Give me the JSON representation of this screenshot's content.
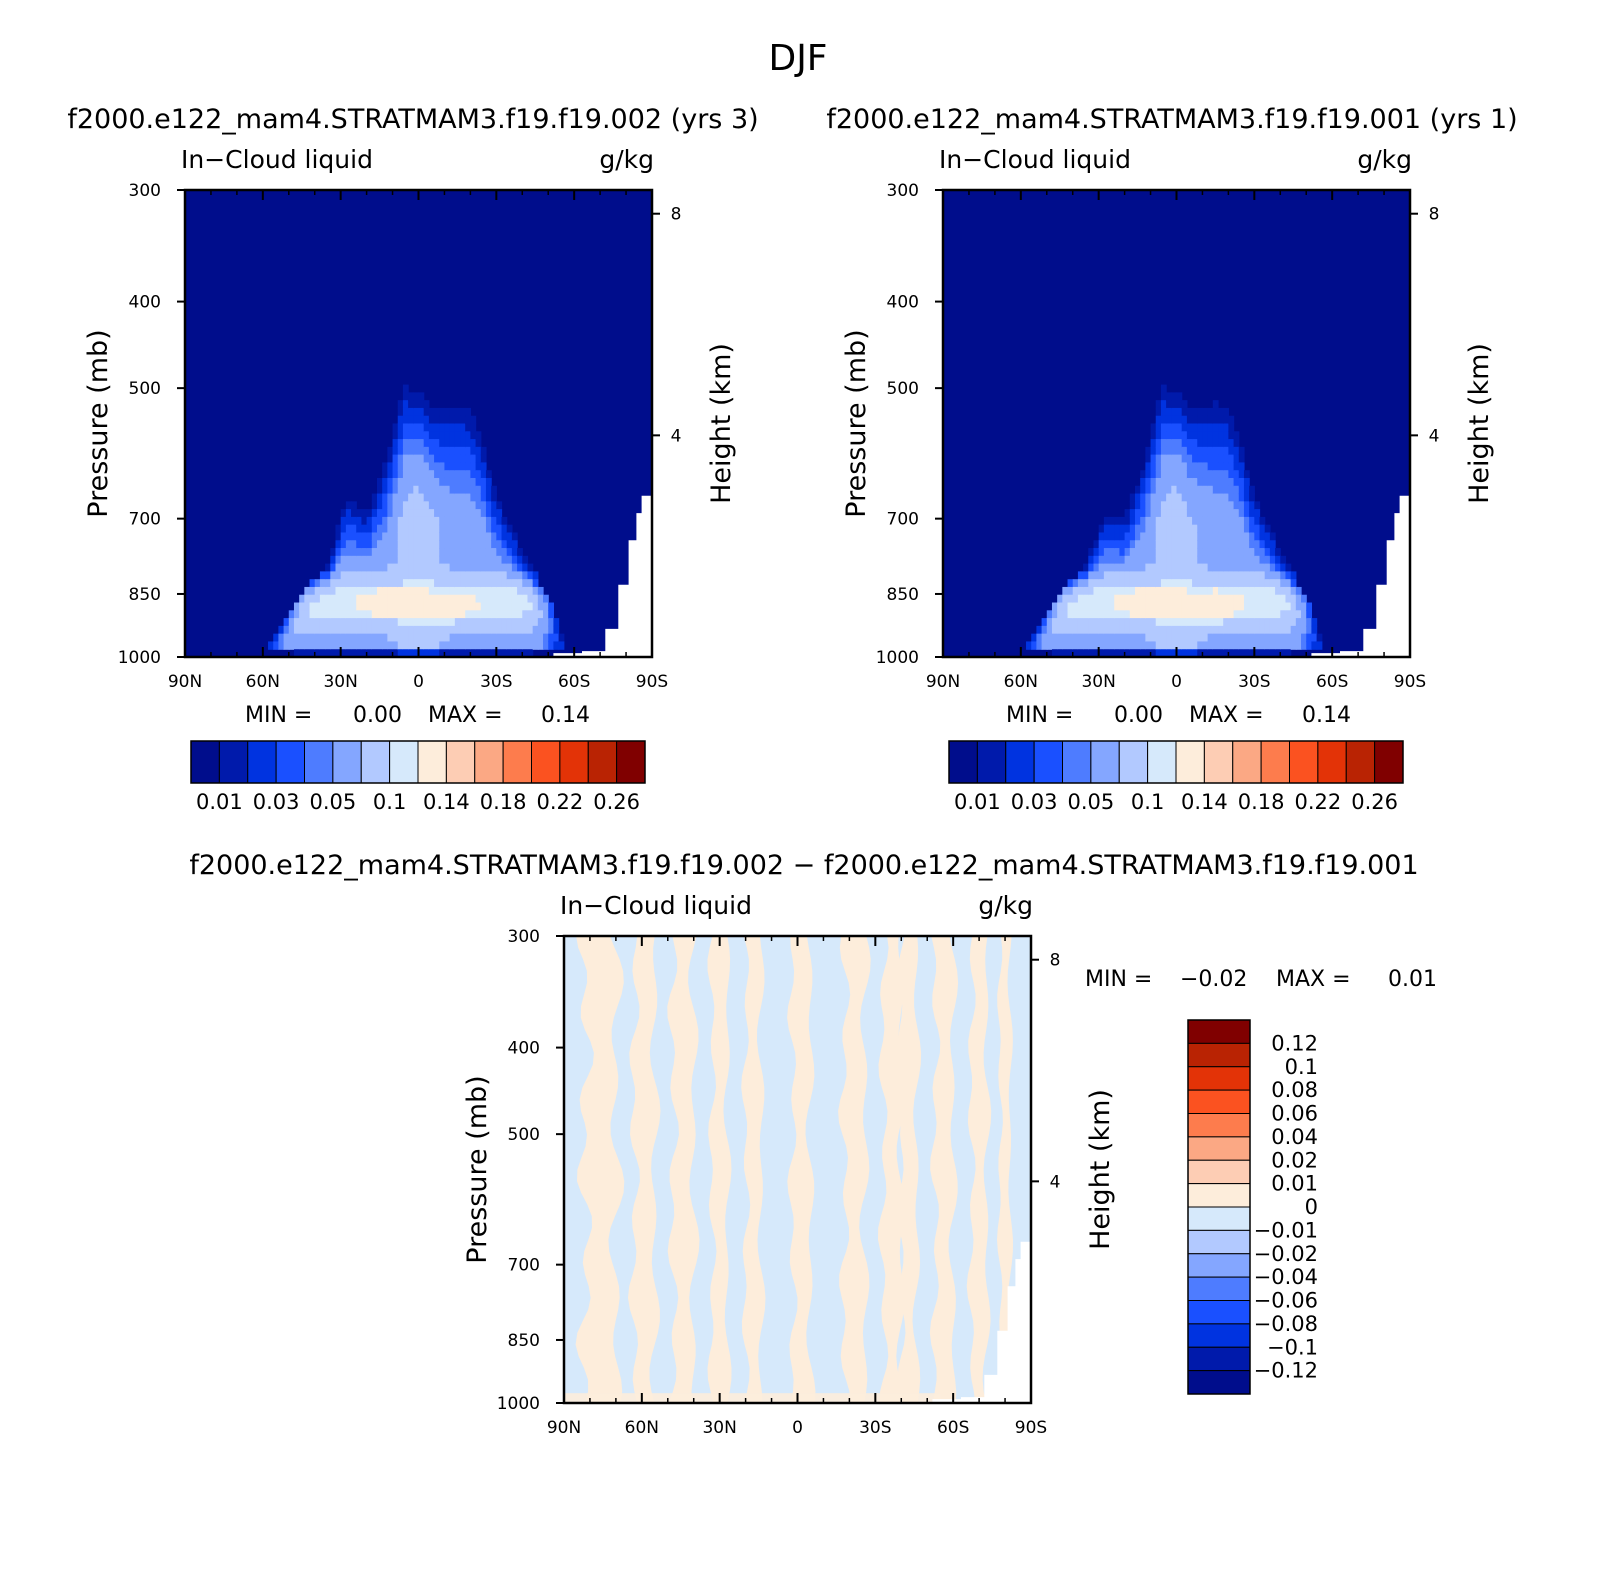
{
  "figure": {
    "title": "DJF",
    "panels": [
      {
        "id": "panel-case1",
        "header": "f2000.e122_mam4.STRATMAM3.f19.f19.002 (yrs 3)",
        "left_label": "In−Cloud liquid",
        "right_label": "g/kg",
        "min_label": "MIN =",
        "min_value": "0.00",
        "max_label": "MAX =",
        "max_value": "0.14"
      },
      {
        "id": "panel-case2",
        "header": "f2000.e122_mam4.STRATMAM3.f19.f19.001 (yrs 1)",
        "left_label": "In−Cloud liquid",
        "right_label": "g/kg",
        "min_label": "MIN =",
        "min_value": "0.00",
        "max_label": "MAX =",
        "max_value": "0.14"
      },
      {
        "id": "panel-diff",
        "header": "f2000.e122_mam4.STRATMAM3.f19.f19.002 − f2000.e122_mam4.STRATMAM3.f19.f19.001",
        "left_label": "In−Cloud liquid",
        "right_label": "g/kg",
        "min_label": "MIN =",
        "min_value": "−0.02",
        "max_label": "MAX =",
        "max_value": "0.01"
      }
    ]
  },
  "chart_data": [
    {
      "type": "heatmap",
      "title": "f2000.e122_mam4.STRATMAM3.f19.f19.002 (yrs 3)",
      "xlabel": "",
      "ylabel": "Pressure (mb)",
      "y2label": "Height (km)",
      "xticks": [
        "90N",
        "60N",
        "30N",
        "0",
        "30S",
        "60S",
        "90S"
      ],
      "xlim": [
        90,
        -90
      ],
      "yticks": [
        300,
        400,
        500,
        700,
        850,
        1000
      ],
      "ylim": [
        1000,
        300
      ],
      "yscale": "log",
      "y2ticks": [
        8,
        4
      ],
      "units": "g/kg",
      "min": 0.0,
      "max": 0.14,
      "contour_levels": [
        0.01,
        0.02,
        0.03,
        0.04,
        0.05,
        0.07,
        0.1,
        0.12,
        0.14
      ],
      "ridge_profile": {
        "lat": [
          62,
          55,
          45,
          35,
          28,
          20,
          12,
          8,
          5,
          2,
          0,
          -5,
          -10,
          -15,
          -20,
          -25,
          -30,
          -38,
          -45,
          -52,
          -58
        ],
        "top_pressure": [
          1000,
          940,
          850,
          790,
          660,
          690,
          600,
          530,
          500,
          505,
          505,
          525,
          530,
          525,
          530,
          580,
          660,
          740,
          810,
          880,
          1000
        ]
      },
      "cores": [
        {
          "lat": 13,
          "pressure": 870,
          "value": 0.12
        },
        {
          "lat": -13,
          "pressure": 875,
          "value": 0.12
        }
      ]
    },
    {
      "type": "heatmap",
      "title": "f2000.e122_mam4.STRATMAM3.f19.f19.001 (yrs 1)",
      "xlabel": "",
      "ylabel": "Pressure (mb)",
      "y2label": "Height (km)",
      "xticks": [
        "90N",
        "60N",
        "30N",
        "0",
        "30S",
        "60S",
        "90S"
      ],
      "xlim": [
        90,
        -90
      ],
      "yticks": [
        300,
        400,
        500,
        700,
        850,
        1000
      ],
      "ylim": [
        1000,
        300
      ],
      "yscale": "log",
      "y2ticks": [
        8,
        4
      ],
      "units": "g/kg",
      "min": 0.0,
      "max": 0.14,
      "contour_levels": [
        0.01,
        0.02,
        0.03,
        0.04,
        0.05,
        0.07,
        0.1,
        0.12,
        0.14
      ],
      "ridge_profile": {
        "lat": [
          62,
          55,
          45,
          35,
          28,
          20,
          12,
          8,
          5,
          2,
          0,
          -5,
          -10,
          -15,
          -20,
          -25,
          -30,
          -38,
          -45,
          -52,
          -58
        ],
        "top_pressure": [
          1000,
          940,
          850,
          790,
          690,
          700,
          600,
          530,
          500,
          505,
          505,
          530,
          525,
          520,
          530,
          580,
          660,
          740,
          810,
          880,
          1000
        ]
      },
      "cores": [
        {
          "lat": 13,
          "pressure": 870,
          "value": 0.12
        },
        {
          "lat": -15,
          "pressure": 875,
          "value": 0.14
        }
      ]
    },
    {
      "type": "heatmap",
      "title": "f2000.e122_mam4.STRATMAM3.f19.f19.002 − f2000.e122_mam4.STRATMAM3.f19.f19.001",
      "xlabel": "",
      "ylabel": "Pressure (mb)",
      "y2label": "Height (km)",
      "xticks": [
        "90N",
        "60N",
        "30N",
        "0",
        "30S",
        "60S",
        "90S"
      ],
      "xlim": [
        90,
        -90
      ],
      "yticks": [
        300,
        400,
        500,
        700,
        850,
        1000
      ],
      "ylim": [
        1000,
        300
      ],
      "yscale": "log",
      "y2ticks": [
        8,
        4
      ],
      "units": "g/kg",
      "min": -0.02,
      "max": 0.01,
      "stripes": {
        "lat_edges": [
          90,
          82,
          70,
          63,
          55,
          48,
          40,
          33,
          27,
          20,
          14,
          8,
          2,
          -5,
          -12,
          -18,
          -26,
          -33,
          -40,
          -46,
          -53,
          -60,
          -67,
          -73,
          -78,
          -82,
          -86
        ],
        "sign": [
          "-",
          "+",
          "-",
          "+",
          "-",
          "+",
          "-",
          "+",
          "-",
          "+",
          "-",
          "-",
          "+",
          "-",
          "-",
          "+",
          "-",
          "+",
          "+",
          "-",
          "+",
          "-",
          "+",
          "-",
          "+",
          "-"
        ]
      }
    }
  ],
  "colorbars": {
    "abs": {
      "labels": [
        "0.01",
        "0.03",
        "0.05",
        "0.1",
        "0.14",
        "0.18",
        "0.22",
        "0.26"
      ],
      "colors": [
        "#000d8c",
        "#001aab",
        "#0033e0",
        "#1a50ff",
        "#4e7cff",
        "#84a6ff",
        "#b2c9ff",
        "#d6e9fb",
        "#fdeddb",
        "#fdcdb4",
        "#fba884",
        "#fd7c4d",
        "#fb5220",
        "#e33307",
        "#b92303",
        "#800000"
      ]
    },
    "diff": {
      "labels": [
        "0.12",
        "0.1",
        "0.08",
        "0.06",
        "0.04",
        "0.02",
        "0.01",
        "0",
        "−0.01",
        "−0.02",
        "−0.04",
        "−0.06",
        "−0.08",
        "−0.1",
        "−0.12"
      ],
      "colors_top_to_bottom": [
        "#800000",
        "#b92303",
        "#e33307",
        "#fb5220",
        "#fd7c4d",
        "#fba884",
        "#fdcdb4",
        "#fdeddb",
        "#d6e9fb",
        "#b2c9ff",
        "#84a6ff",
        "#4e7cff",
        "#1a50ff",
        "#0033e0",
        "#001aab",
        "#000d8c"
      ]
    }
  }
}
